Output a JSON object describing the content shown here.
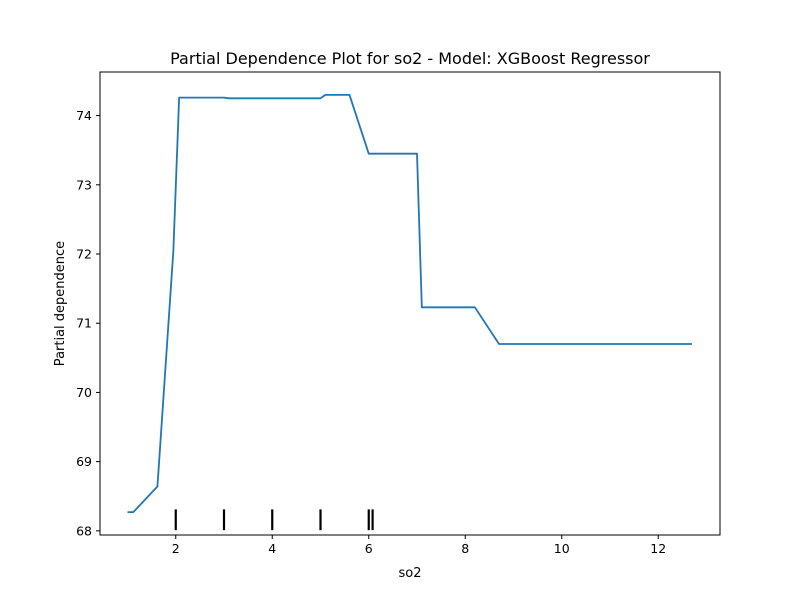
{
  "chart_data": {
    "type": "line",
    "title": "Partial Dependence Plot for so2 - Model: XGBoost Regressor",
    "xlabel": "so2",
    "ylabel": "Partial dependence",
    "xlim": [
      0.43,
      13.28
    ],
    "ylim": [
      67.94,
      74.63
    ],
    "xticks": [
      2,
      4,
      6,
      8,
      10,
      12
    ],
    "yticks": [
      68,
      69,
      70,
      71,
      72,
      73,
      74
    ],
    "grid": false,
    "line_color": "#1f77b4",
    "series": [
      {
        "x": [
          1.0,
          1.12,
          1.62,
          1.95,
          2.07,
          2.1,
          3.0,
          3.1,
          5.0,
          5.1,
          5.6,
          6.0,
          6.1,
          7.0,
          7.1,
          8.2,
          8.7,
          12.7
        ],
        "y": [
          68.27,
          68.27,
          68.64,
          72.04,
          74.26,
          74.26,
          74.26,
          74.25,
          74.25,
          74.3,
          74.3,
          73.45,
          73.45,
          73.45,
          71.23,
          71.23,
          70.7,
          70.7
        ]
      }
    ],
    "rug": {
      "color": "#000000",
      "x": [
        2.0,
        3.0,
        4.0,
        5.0,
        6.0,
        6.08
      ]
    }
  }
}
